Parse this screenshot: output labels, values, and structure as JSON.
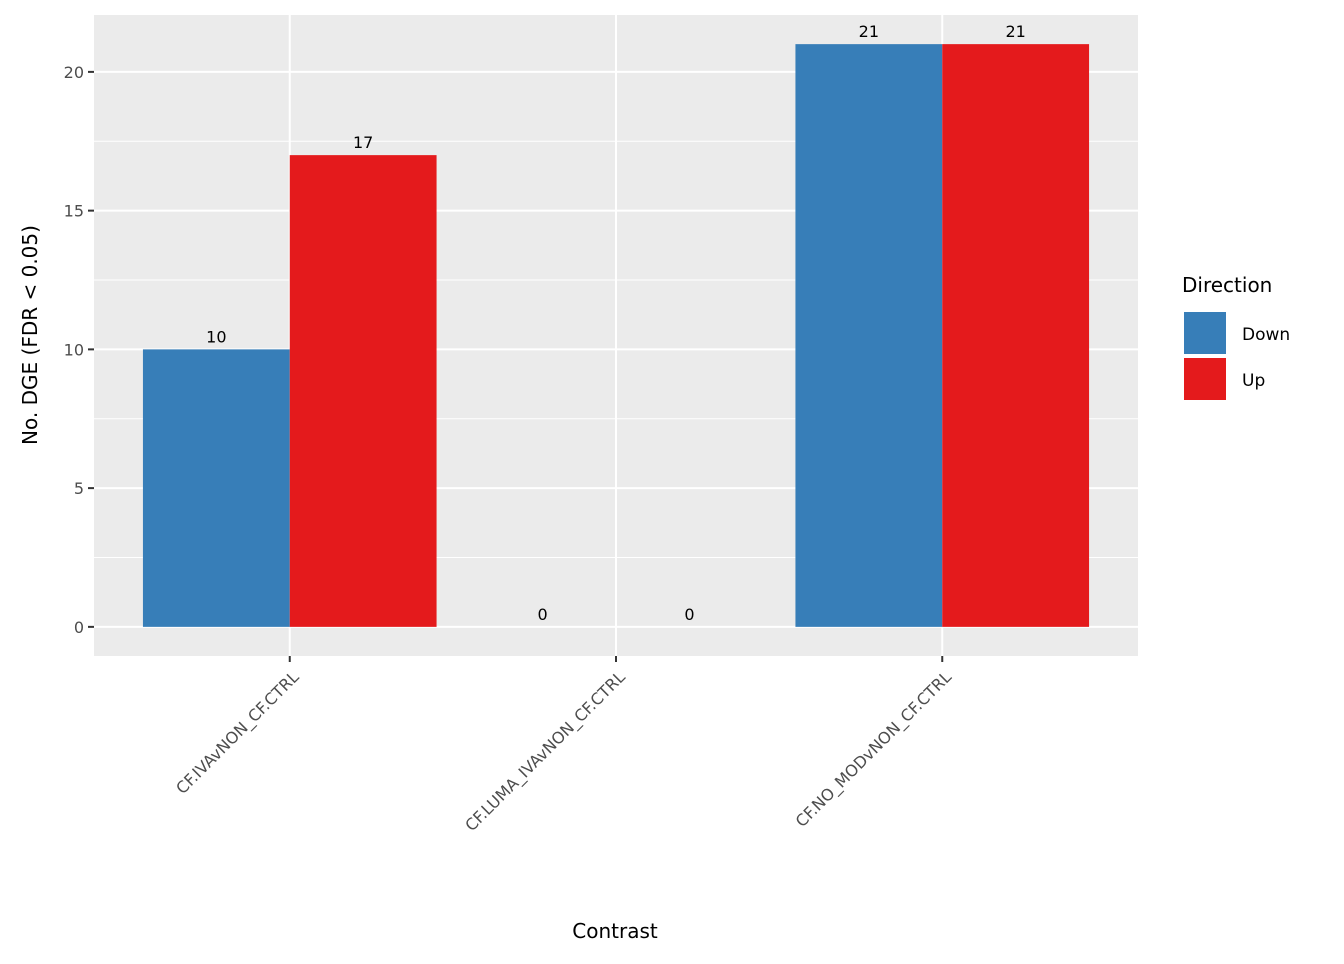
{
  "chart_data": {
    "type": "bar",
    "title": "",
    "xlabel": "Contrast",
    "ylabel": "No. DGE (FDR < 0.05)",
    "categories": [
      "CF.IVAvNON_CF.CTRL",
      "CF.LUMA_IVAvNON_CF.CTRL",
      "CF.NO_MODvNON_CF.CTRL"
    ],
    "series": [
      {
        "name": "Down",
        "values": [
          10,
          0,
          21
        ],
        "color": "#377EB8"
      },
      {
        "name": "Up",
        "values": [
          17,
          0,
          21
        ],
        "color": "#E41A1C"
      }
    ],
    "ylim": [
      -1.05,
      22.05
    ],
    "yticks": [
      0,
      5,
      10,
      15,
      20
    ],
    "grid": true,
    "legend": {
      "title": "Direction",
      "position": "right"
    },
    "data_labels": true
  }
}
